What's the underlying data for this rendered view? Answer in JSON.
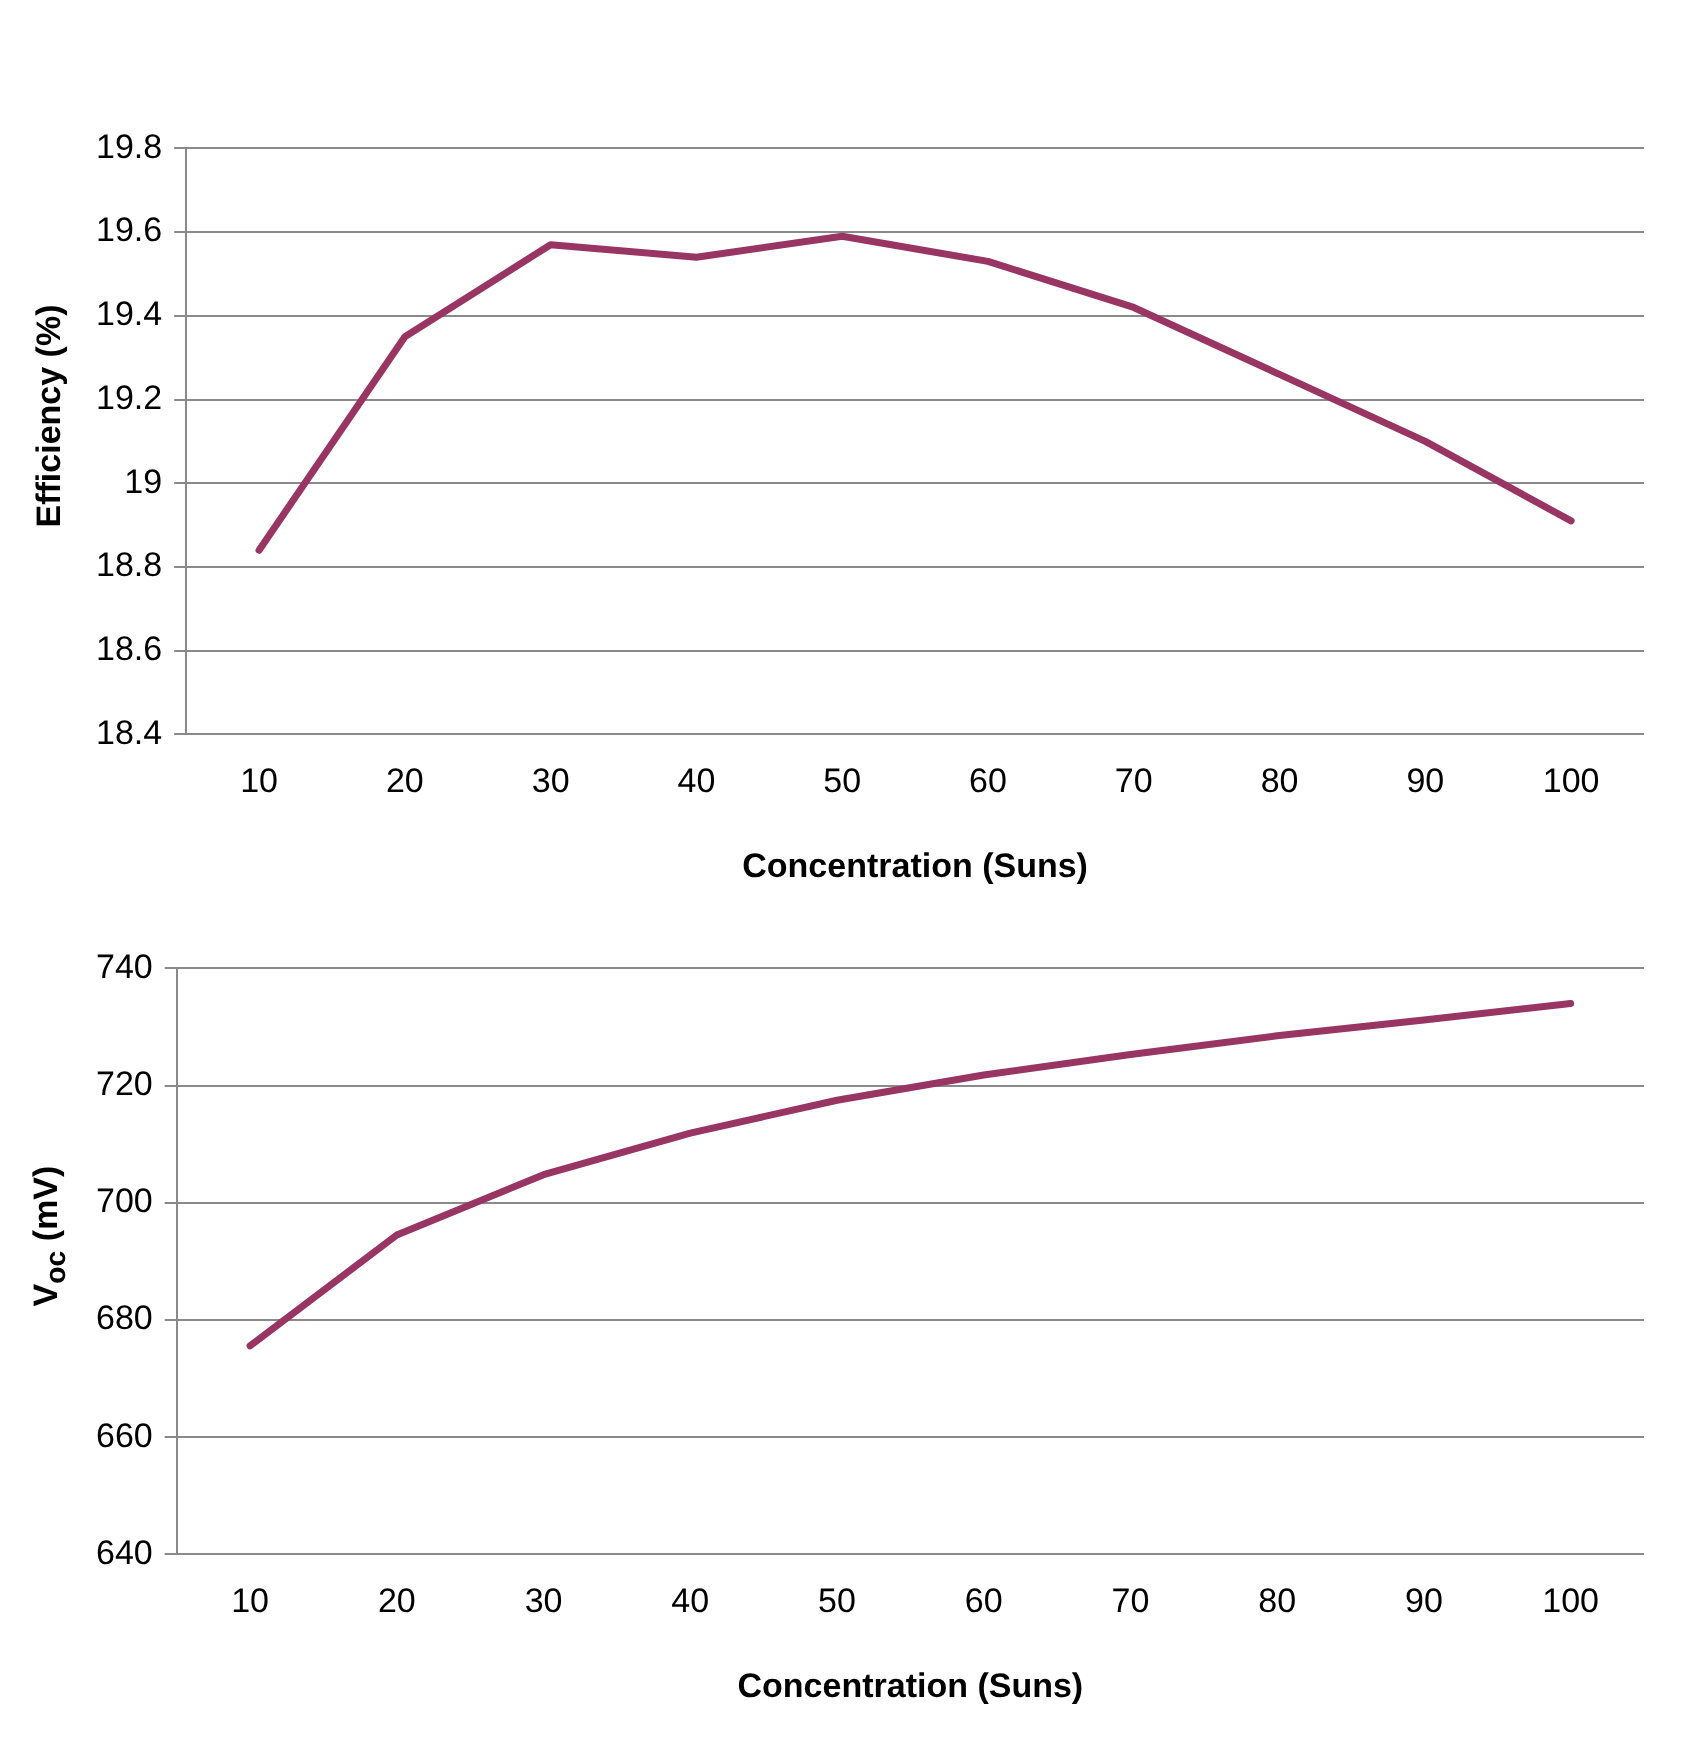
{
  "chart_data": [
    {
      "type": "line",
      "xlabel": "Concentration (Suns)",
      "ylabel": "Efficiency (%)",
      "categories": [
        "10",
        "20",
        "30",
        "40",
        "50",
        "60",
        "70",
        "80",
        "90",
        "100"
      ],
      "series": [
        {
          "color": "#983563",
          "values": [
            18.84,
            19.35,
            19.57,
            19.54,
            19.59,
            19.53,
            19.42,
            19.26,
            19.1,
            18.91
          ]
        }
      ],
      "ylim": [
        18.4,
        19.8
      ],
      "yticks": [
        18.4,
        18.6,
        18.8,
        19,
        19.2,
        19.4,
        19.6,
        19.8
      ],
      "grid": "y",
      "legend": false,
      "marker": "none",
      "line_style": "solid"
    },
    {
      "type": "line",
      "xlabel": "Concentration (Suns)",
      "ylabel": "V$_{oc}$ (mV)",
      "categories": [
        "10",
        "20",
        "30",
        "40",
        "50",
        "60",
        "70",
        "80",
        "90",
        "100"
      ],
      "series": [
        {
          "color": "#983563",
          "values": [
            675.6,
            694.5,
            704.8,
            711.9,
            717.5,
            721.8,
            725.3,
            728.5,
            731.2,
            734
          ]
        }
      ],
      "ylim": [
        640,
        740
      ],
      "yticks": [
        640,
        660,
        680,
        700,
        720,
        740
      ],
      "grid": "y",
      "legend": false,
      "marker": "none",
      "line_style": "solid"
    }
  ]
}
